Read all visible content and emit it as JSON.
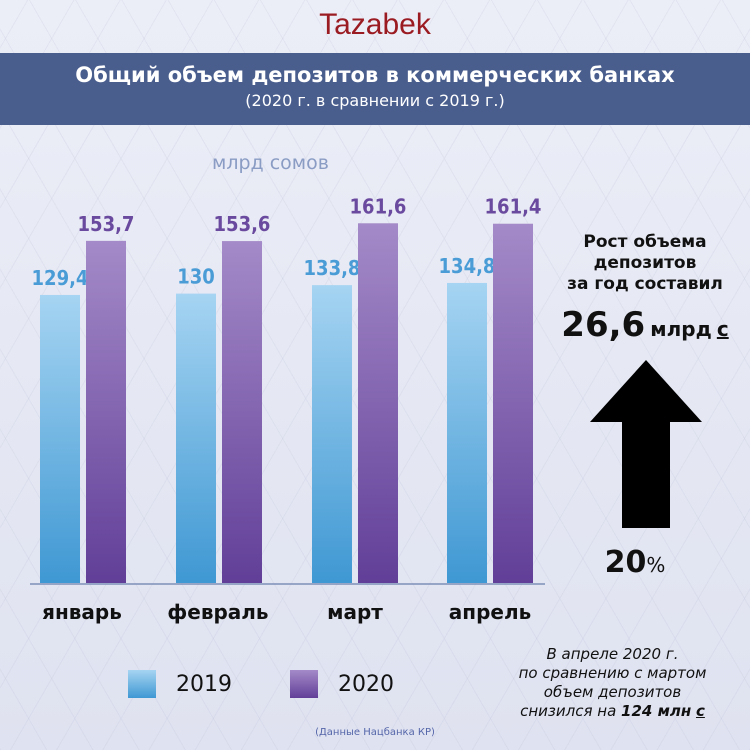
{
  "logo": "Tazabek",
  "header": {
    "title": "Общий объем депозитов в коммерческих банках",
    "subtitle": "(2020 г. в сравнении с 2019 г.)"
  },
  "chart_data": {
    "type": "bar",
    "title": "Общий объем депозитов в коммерческих банках",
    "subtitle": "(2020 г. в сравнении с 2019 г.)",
    "ylabel": "млрд сомов",
    "categories": [
      "январь",
      "февраль",
      "март",
      "апрель"
    ],
    "series": [
      {
        "name": "2019",
        "values": [
          129.4,
          130,
          133.8,
          134.8
        ],
        "labels": [
          "129,4",
          "130",
          "133,8",
          "134,8"
        ],
        "color": "#5aa8df"
      },
      {
        "name": "2020",
        "values": [
          153.7,
          153.6,
          161.6,
          161.4
        ],
        "labels": [
          "153,7",
          "153,6",
          "161,6",
          "161,4"
        ],
        "color": "#7a5aa8"
      }
    ],
    "ylim": [
      0,
      170
    ],
    "grid": false,
    "legend": "bottom-left"
  },
  "side": {
    "line1": "Рост объема",
    "line2": "депозитов",
    "line3": "за год составил",
    "value": "26,6",
    "unit": "млрд",
    "currency": "с",
    "percent_value": "20",
    "percent_sign": "%"
  },
  "note": {
    "line1": "В апреле 2020 г.",
    "line2": "по сравнению с мартом",
    "line3": "объем депозитов",
    "line4": "снизился на",
    "amount": "124 млн",
    "currency": "с"
  },
  "source": "(Данные Нацбанка КР)",
  "colors": {
    "banner": "#4a5e8e",
    "logo": "#9b1b22",
    "label2019": "#4a9cd6",
    "label2020": "#6a4a9e"
  }
}
